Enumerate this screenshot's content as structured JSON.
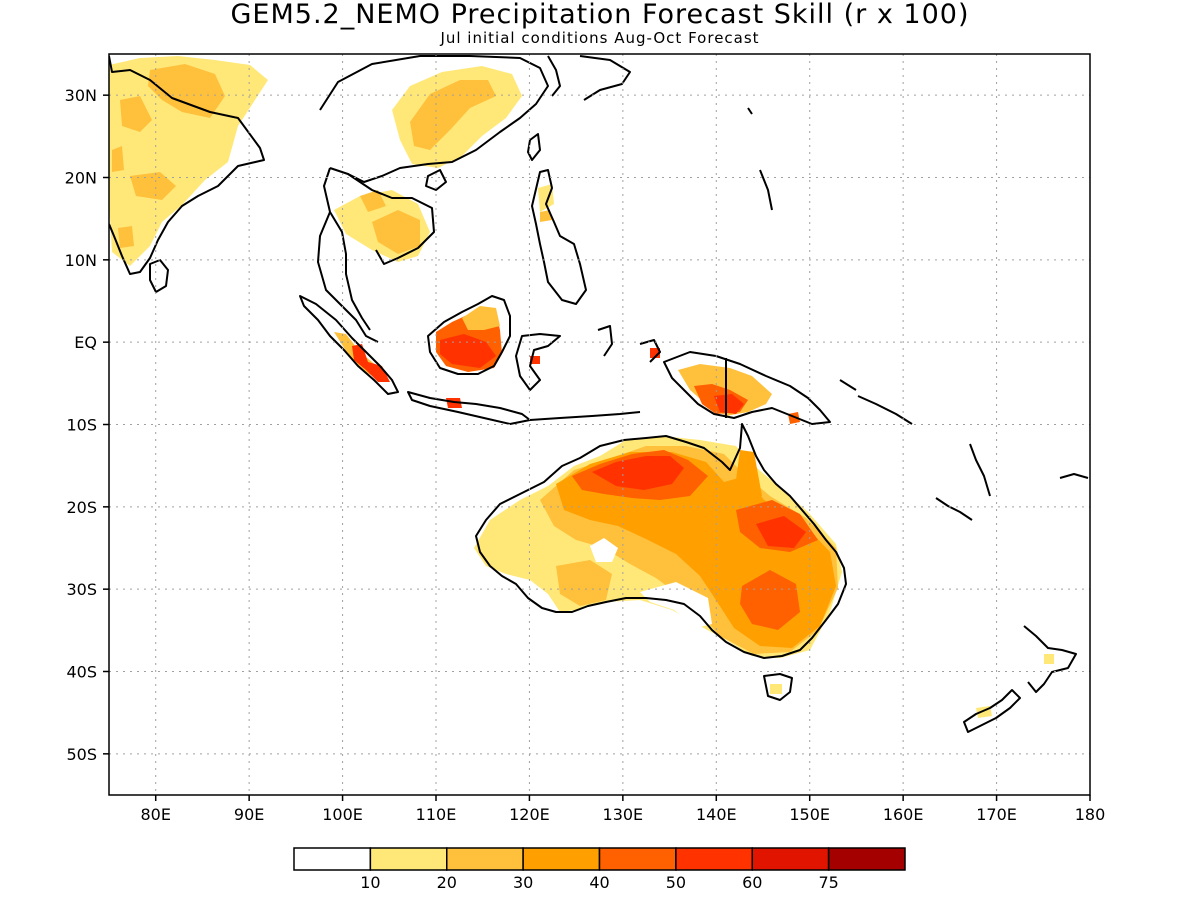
{
  "title": "GEM5.2_NEMO Precipitation Forecast Skill (r x 100)",
  "subtitle": "Jul initial conditions  Aug-Oct Forecast",
  "map": {
    "lon_range": [
      75,
      180
    ],
    "lat_range": [
      -55,
      35
    ],
    "lat_labels": [
      {
        "lat": 30,
        "text": "30N"
      },
      {
        "lat": 20,
        "text": "20N"
      },
      {
        "lat": 10,
        "text": "10N"
      },
      {
        "lat": 0,
        "text": "EQ"
      },
      {
        "lat": -10,
        "text": "10S"
      },
      {
        "lat": -20,
        "text": "20S"
      },
      {
        "lat": -30,
        "text": "30S"
      },
      {
        "lat": -40,
        "text": "40S"
      },
      {
        "lat": -50,
        "text": "50S"
      }
    ],
    "lon_labels": [
      {
        "lon": 80,
        "text": "80E"
      },
      {
        "lon": 90,
        "text": "90E"
      },
      {
        "lon": 100,
        "text": "100E"
      },
      {
        "lon": 110,
        "text": "110E"
      },
      {
        "lon": 120,
        "text": "120E"
      },
      {
        "lon": 130,
        "text": "130E"
      },
      {
        "lon": 140,
        "text": "140E"
      },
      {
        "lon": 150,
        "text": "150E"
      },
      {
        "lon": 160,
        "text": "160E"
      },
      {
        "lon": 170,
        "text": "170E"
      },
      {
        "lon": 180,
        "text": "180"
      }
    ],
    "grid": true
  },
  "colorbar": {
    "colors": [
      "#ffffff",
      "#ffe878",
      "#ffc03c",
      "#ffa000",
      "#ff6000",
      "#ff3200",
      "#e11400",
      "#a50000"
    ],
    "labels": [
      "10",
      "20",
      "30",
      "40",
      "50",
      "60",
      "75"
    ]
  },
  "colors": {
    "coast": "#000000",
    "grid": "#a0a0a0"
  }
}
